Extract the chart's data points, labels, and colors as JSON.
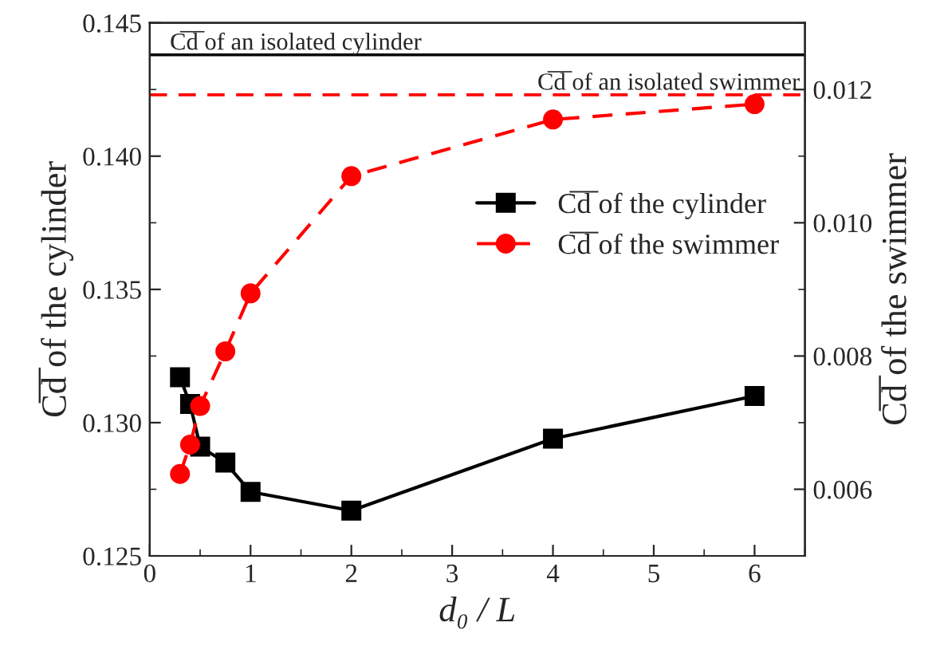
{
  "chart_data": {
    "type": "line",
    "xlabel": "d₀ / L",
    "ylabel": "C̅d̅ of the cylinder",
    "y2label": "C̅d̅ of the swimmer",
    "x": [
      0.3,
      0.4,
      0.5,
      0.75,
      1,
      2,
      4,
      6
    ],
    "series": [
      {
        "name": "C̅d̅ of the cylinder",
        "color": "#000000",
        "marker": "square",
        "line_style": "solid",
        "values": [
          0.1317,
          0.1307,
          0.1291,
          0.1285,
          0.1274,
          0.1267,
          0.1294,
          0.131
        ]
      },
      {
        "name": "C̅d̅ of the swimmer",
        "color": "#ff0000",
        "marker": "circle",
        "line_style": "dashed",
        "axis": "y2",
        "values": [
          0.00623,
          0.00667,
          0.00725,
          0.00807,
          0.00894,
          0.0107,
          0.01155,
          0.01178
        ]
      }
    ],
    "ref_lines": [
      {
        "axis": "y",
        "value": 0.1438,
        "label": "C̅d̅ of an isolated cylinder",
        "color": "#000000",
        "line_style": "solid"
      },
      {
        "axis": "y2",
        "value": 0.01192,
        "label": "C̅d̅ of an isolated swimmer",
        "color": "#ff0000",
        "line_style": "dashed"
      }
    ],
    "xlim": [
      0,
      6.5
    ],
    "xticks": [
      0,
      1,
      2,
      3,
      4,
      5,
      6
    ],
    "ylim": [
      0.125,
      0.145
    ],
    "yticks": [
      {
        "value": 0.125,
        "label": "0.125"
      },
      {
        "value": 0.13,
        "label": "0.130"
      },
      {
        "value": 0.135,
        "label": "0.135"
      },
      {
        "value": 0.14,
        "label": "0.140"
      },
      {
        "value": 0.145,
        "label": "0.145"
      }
    ],
    "y2lim": [
      0.005,
      0.013
    ],
    "y2ticks": [
      {
        "value": 0.006,
        "label": "0.006"
      },
      {
        "value": 0.008,
        "label": "0.008"
      },
      {
        "value": 0.01,
        "label": "0.010"
      },
      {
        "value": 0.012,
        "label": "0.012"
      }
    ],
    "legend": "right",
    "grid": false
  }
}
